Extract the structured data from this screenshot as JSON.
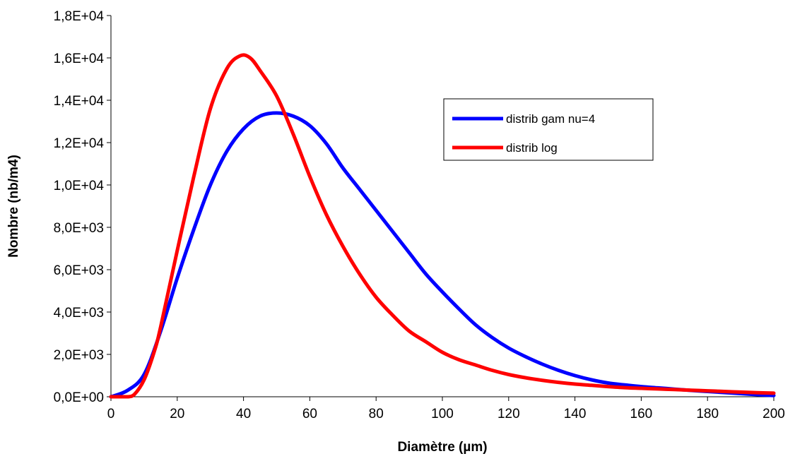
{
  "chart_data": {
    "type": "line",
    "xlabel": "Diamètre (µm)",
    "ylabel": "Nombre (nb/m4)",
    "xlim": [
      0,
      200
    ],
    "ylim": [
      0,
      18000
    ],
    "x_ticks": [
      0,
      20,
      40,
      60,
      80,
      100,
      120,
      140,
      160,
      180,
      200
    ],
    "x_tick_labels": [
      "0",
      "20",
      "40",
      "60",
      "80",
      "100",
      "120",
      "140",
      "160",
      "180",
      "200"
    ],
    "y_ticks": [
      0,
      2000,
      4000,
      6000,
      8000,
      10000,
      12000,
      14000,
      16000,
      18000
    ],
    "y_tick_labels": [
      "0,0E+00",
      "2,0E+03",
      "4,0E+03",
      "6,0E+03",
      "8,0E+03",
      "1,0E+04",
      "1,2E+04",
      "1,4E+04",
      "1,6E+04",
      "1,8E+04"
    ],
    "grid": false,
    "legend_position": "top-right",
    "series": [
      {
        "name": "distrib gam nu=4",
        "color": "#0000ff",
        "x": [
          0,
          5,
          10,
          15,
          20,
          25,
          30,
          35,
          40,
          45,
          50,
          55,
          60,
          65,
          70,
          75,
          80,
          85,
          90,
          95,
          100,
          105,
          110,
          115,
          120,
          125,
          130,
          135,
          140,
          145,
          150,
          155,
          160,
          165,
          170,
          175,
          180,
          185,
          190,
          195,
          200
        ],
        "y": [
          0,
          300,
          1050,
          3100,
          5600,
          7900,
          10000,
          11600,
          12650,
          13250,
          13400,
          13250,
          12800,
          11950,
          10800,
          9800,
          8800,
          7800,
          6800,
          5800,
          4950,
          4150,
          3400,
          2800,
          2300,
          1900,
          1550,
          1250,
          1000,
          800,
          650,
          560,
          480,
          420,
          360,
          300,
          250,
          200,
          150,
          100,
          60
        ]
      },
      {
        "name": "distrib log",
        "color": "#ff0000",
        "x": [
          0,
          5,
          7,
          10,
          13,
          15,
          20,
          25,
          30,
          35,
          39,
          42,
          45,
          50,
          55,
          60,
          65,
          70,
          75,
          80,
          85,
          90,
          95,
          100,
          105,
          110,
          115,
          120,
          125,
          130,
          135,
          140,
          145,
          150,
          155,
          160,
          165,
          170,
          175,
          180,
          185,
          190,
          195,
          200
        ],
        "y": [
          0,
          0,
          100,
          800,
          2100,
          3300,
          6900,
          10400,
          13600,
          15500,
          16100,
          16000,
          15400,
          14200,
          12400,
          10400,
          8600,
          7100,
          5800,
          4700,
          3850,
          3100,
          2600,
          2100,
          1750,
          1500,
          1250,
          1050,
          900,
          780,
          680,
          600,
          540,
          480,
          430,
          400,
          370,
          340,
          310,
          280,
          250,
          220,
          190,
          170
        ]
      }
    ]
  }
}
